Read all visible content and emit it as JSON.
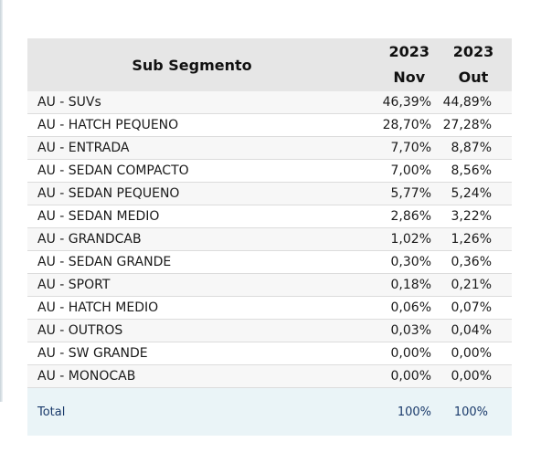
{
  "header": {
    "sub_segment": "Sub Segmento",
    "col1_year": "2023",
    "col1_month": "Nov",
    "col2_year": "2023",
    "col2_month": "Out"
  },
  "rows": [
    {
      "label": "AU - SUVs",
      "nov": "46,39%",
      "out": "44,89%"
    },
    {
      "label": "AU - HATCH PEQUENO",
      "nov": "28,70%",
      "out": "27,28%"
    },
    {
      "label": "AU - ENTRADA",
      "nov": "7,70%",
      "out": "8,87%"
    },
    {
      "label": "AU - SEDAN COMPACTO",
      "nov": "7,00%",
      "out": "8,56%"
    },
    {
      "label": "AU - SEDAN PEQUENO",
      "nov": "5,77%",
      "out": "5,24%"
    },
    {
      "label": "AU - SEDAN MEDIO",
      "nov": "2,86%",
      "out": "3,22%"
    },
    {
      "label": "AU - GRANDCAB",
      "nov": "1,02%",
      "out": "1,26%"
    },
    {
      "label": "AU - SEDAN GRANDE",
      "nov": "0,30%",
      "out": "0,36%"
    },
    {
      "label": "AU - SPORT",
      "nov": "0,18%",
      "out": "0,21%"
    },
    {
      "label": "AU - HATCH MEDIO",
      "nov": "0,06%",
      "out": "0,07%"
    },
    {
      "label": "AU - OUTROS",
      "nov": "0,03%",
      "out": "0,04%"
    },
    {
      "label": "AU - SW GRANDE",
      "nov": "0,00%",
      "out": "0,00%"
    },
    {
      "label": "AU - MONOCAB",
      "nov": "0,00%",
      "out": "0,00%"
    }
  ],
  "total": {
    "label": "Total",
    "nov": "100%",
    "out": "100%"
  },
  "colors": {
    "header_bg": "#e6e6e6",
    "total_bg": "#eaf4f7",
    "total_text": "#1a3a6b"
  }
}
